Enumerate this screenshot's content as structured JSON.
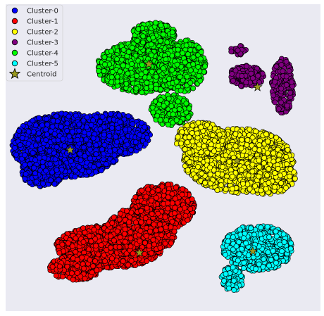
{
  "chart_data": {
    "type": "scatter",
    "title": "",
    "xlabel": "",
    "ylabel": "",
    "xlim": [
      0,
      100
    ],
    "ylim": [
      0,
      100
    ],
    "grid": false,
    "background": "#eaeaf2",
    "legend_position": "top-left",
    "series": [
      {
        "name": "Cluster-0",
        "color": "#0000ff",
        "centroid": [
          20.5,
          52.5
        ],
        "blobs": [
          {
            "cx": 19.5,
            "cy": 54.0,
            "rx": 17.5,
            "ry": 10.5,
            "n": 1500
          },
          {
            "cx": 33.0,
            "cy": 57.5,
            "rx": 13.0,
            "ry": 7.0,
            "n": 700
          },
          {
            "cx": 12.0,
            "cy": 45.5,
            "rx": 7.0,
            "ry": 5.0,
            "n": 300
          }
        ]
      },
      {
        "name": "Cluster-1",
        "color": "#ff0000",
        "centroid": [
          42.5,
          19.0
        ],
        "blobs": [
          {
            "cx": 33.0,
            "cy": 21.0,
            "rx": 17.0,
            "ry": 7.0,
            "n": 1300
          },
          {
            "cx": 50.0,
            "cy": 34.0,
            "rx": 10.0,
            "ry": 7.5,
            "n": 700
          },
          {
            "cx": 43.0,
            "cy": 26.0,
            "rx": 11.0,
            "ry": 8.0,
            "n": 700
          },
          {
            "cx": 22.0,
            "cy": 14.0,
            "rx": 8.0,
            "ry": 4.0,
            "n": 250
          }
        ]
      },
      {
        "name": "Cluster-2",
        "color": "#ffff00",
        "centroid": [
          73.5,
          49.0
        ],
        "blobs": [
          {
            "cx": 74.0,
            "cy": 49.0,
            "rx": 17.5,
            "ry": 10.5,
            "n": 1500
          },
          {
            "cx": 62.0,
            "cy": 56.0,
            "rx": 8.0,
            "ry": 5.5,
            "n": 400
          },
          {
            "cx": 83.0,
            "cy": 44.0,
            "rx": 9.0,
            "ry": 6.0,
            "n": 300
          }
        ]
      },
      {
        "name": "Cluster-3",
        "color": "#800080",
        "centroid": [
          80.0,
          73.0
        ],
        "blobs": [
          {
            "cx": 76.5,
            "cy": 76.5,
            "rx": 5.5,
            "ry": 3.5,
            "n": 200
          },
          {
            "cx": 88.0,
            "cy": 73.5,
            "rx": 3.5,
            "ry": 9.0,
            "n": 220
          },
          {
            "cx": 74.0,
            "cy": 85.0,
            "rx": 2.5,
            "ry": 1.5,
            "n": 30
          }
        ]
      },
      {
        "name": "Cluster-4",
        "color": "#00ff00",
        "centroid": [
          45.5,
          80.5
        ],
        "blobs": [
          {
            "cx": 44.0,
            "cy": 79.5,
            "rx": 15.0,
            "ry": 8.5,
            "n": 1100
          },
          {
            "cx": 56.0,
            "cy": 80.0,
            "rx": 7.5,
            "ry": 8.5,
            "n": 450
          },
          {
            "cx": 47.0,
            "cy": 90.0,
            "rx": 7.0,
            "ry": 4.0,
            "n": 300
          },
          {
            "cx": 52.5,
            "cy": 65.5,
            "rx": 6.5,
            "ry": 5.0,
            "n": 250
          }
        ]
      },
      {
        "name": "Cluster-5",
        "color": "#00ffff",
        "centroid": [
          78.5,
          19.5
        ],
        "blobs": [
          {
            "cx": 80.0,
            "cy": 20.5,
            "rx": 11.0,
            "ry": 7.5,
            "n": 650
          },
          {
            "cx": 72.0,
            "cy": 10.5,
            "rx": 3.5,
            "ry": 4.0,
            "n": 90
          }
        ]
      }
    ],
    "centroid_legend_label": "Centroid",
    "centroid_color": "#9b9b1f"
  }
}
